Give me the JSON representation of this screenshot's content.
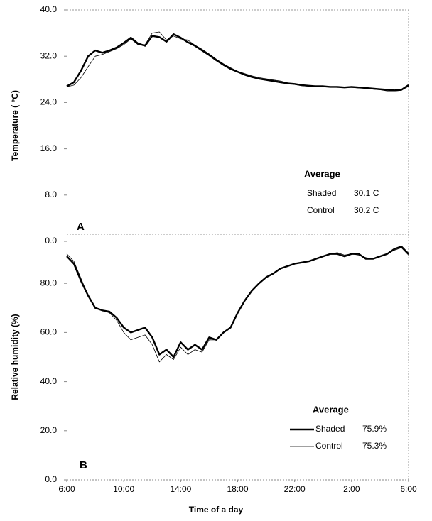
{
  "chart_data": [
    {
      "type": "line",
      "panel_label": "A",
      "ylabel": "Temperature ( °C)",
      "xlim": [
        0,
        24
      ],
      "ylim": [
        0,
        40
      ],
      "yticks": [
        {
          "value": 0,
          "label": "0.0"
        },
        {
          "value": 8,
          "label": "8.0"
        },
        {
          "value": 16,
          "label": "16.0"
        },
        {
          "value": 24,
          "label": "24.0"
        },
        {
          "value": 32,
          "label": "32.0"
        },
        {
          "value": 40,
          "label": "40.0"
        }
      ],
      "x": [
        0,
        0.5,
        1,
        1.5,
        2,
        2.5,
        3,
        3.5,
        4,
        4.5,
        5,
        5.5,
        6,
        6.5,
        7,
        7.5,
        8,
        8.5,
        9,
        9.5,
        10,
        10.5,
        11,
        11.5,
        12,
        12.5,
        13,
        13.5,
        14,
        14.5,
        15,
        15.5,
        16,
        16.5,
        17,
        17.5,
        18,
        18.5,
        19,
        19.5,
        20,
        20.5,
        21,
        21.5,
        22,
        22.5,
        23,
        23.5,
        24
      ],
      "legend": {
        "title": "Average",
        "show_lines": false
      },
      "series": [
        {
          "name": "Shaded",
          "average_label": "30.1 C",
          "color": "#000000",
          "line_width": 2.4,
          "values": [
            26.8,
            27.5,
            29.5,
            32,
            33,
            32.6,
            33,
            33.5,
            34.3,
            35.2,
            34.2,
            33.8,
            35.5,
            35.3,
            34.5,
            35.8,
            35.2,
            34.4,
            33.8,
            33,
            32.2,
            31.3,
            30.5,
            29.8,
            29.3,
            28.8,
            28.4,
            28.1,
            27.9,
            27.7,
            27.5,
            27.3,
            27.2,
            27,
            26.9,
            26.8,
            26.8,
            26.7,
            26.7,
            26.6,
            26.7,
            26.6,
            26.5,
            26.4,
            26.3,
            26.2,
            26.1,
            26.2,
            27
          ]
        },
        {
          "name": "Control",
          "average_label": "30.2 C",
          "color": "#000000",
          "line_width": 0.8,
          "values": [
            26.7,
            27,
            28.3,
            30.2,
            32,
            32.3,
            32.8,
            33.3,
            34,
            35,
            34,
            34,
            36,
            36.2,
            34.8,
            35.5,
            35,
            34.8,
            33.9,
            33.2,
            32.4,
            31.5,
            30.7,
            30,
            29.4,
            29,
            28.6,
            28.3,
            28.1,
            27.9,
            27.7,
            27.4,
            27.1,
            26.9,
            26.8,
            26.9,
            26.9,
            26.7,
            26.6,
            26.6,
            26.6,
            26.5,
            26.5,
            26.3,
            26.2,
            26,
            26,
            26.1,
            26.8
          ]
        }
      ]
    },
    {
      "type": "line",
      "panel_label": "B",
      "ylabel": "Relative humidity (%)",
      "xlabel": "Time of a day",
      "xlim": [
        0,
        24
      ],
      "xticks": [
        {
          "value": 0,
          "label": "6:00"
        },
        {
          "value": 4,
          "label": "10:00"
        },
        {
          "value": 8,
          "label": "14:00"
        },
        {
          "value": 12,
          "label": "18:00"
        },
        {
          "value": 16,
          "label": "22:00"
        },
        {
          "value": 20,
          "label": "2:00"
        },
        {
          "value": 24,
          "label": "6:00"
        }
      ],
      "ylim": [
        0,
        100
      ],
      "yticks": [
        {
          "value": 0,
          "label": "0.0"
        },
        {
          "value": 20,
          "label": "20.0"
        },
        {
          "value": 40,
          "label": "40.0"
        },
        {
          "value": 60,
          "label": "60.0"
        },
        {
          "value": 80,
          "label": "80.0"
        }
      ],
      "x": [
        0,
        0.5,
        1,
        1.5,
        2,
        2.5,
        3,
        3.5,
        4,
        4.5,
        5,
        5.5,
        6,
        6.5,
        7,
        7.5,
        8,
        8.5,
        9,
        9.5,
        10,
        10.5,
        11,
        11.5,
        12,
        12.5,
        13,
        13.5,
        14,
        14.5,
        15,
        15.5,
        16,
        16.5,
        17,
        17.5,
        18,
        18.5,
        19,
        19.5,
        20,
        20.5,
        21,
        21.5,
        22,
        22.5,
        23,
        23.5,
        24
      ],
      "legend": {
        "title": "Average",
        "show_lines": true
      },
      "series": [
        {
          "name": "Shaded",
          "average_label": "75.9%",
          "color": "#000000",
          "line_width": 2.4,
          "values": [
            91,
            88,
            81,
            75,
            70,
            69,
            68.5,
            66,
            62,
            60,
            61,
            62,
            58,
            51,
            53,
            50,
            56,
            53,
            55,
            53,
            58,
            57,
            60,
            62,
            68,
            73,
            77,
            80,
            82.5,
            84,
            86,
            87,
            88,
            88.5,
            89,
            90,
            91,
            92,
            92,
            91,
            92,
            92,
            90,
            90,
            91,
            92,
            94,
            95,
            92
          ]
        },
        {
          "name": "Control",
          "average_label": "75.3%",
          "color": "#000000",
          "line_width": 0.8,
          "values": [
            92,
            89,
            82,
            75,
            70,
            69,
            68,
            65,
            60,
            57,
            58,
            59,
            55,
            48,
            51,
            49,
            54,
            51,
            53,
            52,
            57,
            57,
            60,
            62,
            68,
            73,
            77,
            80,
            82.5,
            84,
            86,
            87,
            88,
            88.5,
            89,
            90,
            91,
            92,
            92.5,
            91.5,
            92,
            91.5,
            90.5,
            90,
            91,
            92,
            93.5,
            94.5,
            91.5
          ]
        }
      ]
    }
  ]
}
